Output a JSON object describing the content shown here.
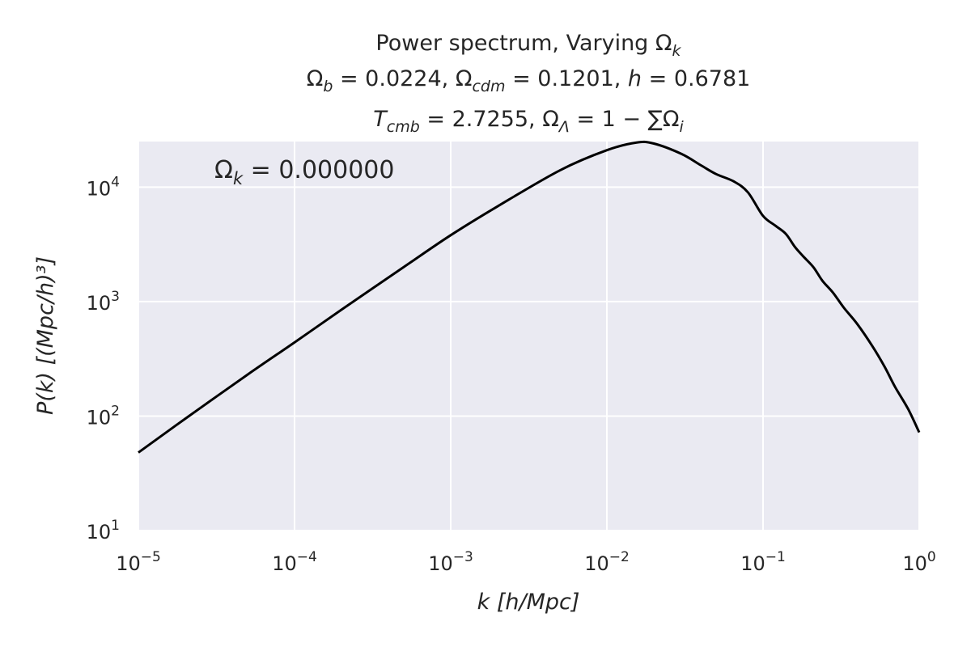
{
  "chart_data": {
    "type": "line",
    "title_lines": [
      [
        "Power spectrum, Varying ",
        {
          "t": "Ω",
          "sub": "k"
        }
      ],
      [
        {
          "t": "Ω",
          "sub": "b"
        },
        " = 0.0224, ",
        {
          "t": "Ω",
          "sub": "cdm"
        },
        " = 0.1201, ",
        {
          "i": "h"
        },
        " = 0.6781"
      ],
      [
        {
          "i": "T",
          "sub": "cmb"
        },
        " = 2.7255, ",
        {
          "t": "Ω",
          "sub": "Λ"
        },
        " = 1 − ∑",
        {
          "t": "Ω",
          "sub": "i"
        }
      ]
    ],
    "xlabel": "k  [h/Mpc]",
    "ylabel": "P(k)  [(Mpc/h)³]",
    "xscale": "log",
    "yscale": "log",
    "xlim": [
      1e-05,
      1
    ],
    "ylim": [
      10,
      25000
    ],
    "x_ticks": [
      {
        "value": 1e-05,
        "base": "10",
        "exp": "−5"
      },
      {
        "value": 0.0001,
        "base": "10",
        "exp": "−4"
      },
      {
        "value": 0.001,
        "base": "10",
        "exp": "−3"
      },
      {
        "value": 0.01,
        "base": "10",
        "exp": "−2"
      },
      {
        "value": 0.1,
        "base": "10",
        "exp": "−1"
      },
      {
        "value": 1,
        "base": "10",
        "exp": "0"
      }
    ],
    "y_ticks": [
      {
        "value": 10,
        "base": "10",
        "exp": "1"
      },
      {
        "value": 100,
        "base": "10",
        "exp": "2"
      },
      {
        "value": 1000,
        "base": "10",
        "exp": "3"
      },
      {
        "value": 10000,
        "base": "10",
        "exp": "4"
      }
    ],
    "grid": true,
    "background": "#eaeaf2",
    "line_color": "#000000",
    "annotation": {
      "prefix": "Ω",
      "sub": "k",
      "text": " = 0.000000"
    },
    "series": [
      {
        "x": [
          1e-05,
          2e-05,
          5e-05,
          0.0001,
          0.0002,
          0.0005,
          0.001,
          0.002,
          0.005,
          0.01,
          0.0155,
          0.02,
          0.03,
          0.04,
          0.05,
          0.065,
          0.08,
          0.1,
          0.12,
          0.14,
          0.16,
          0.18,
          0.21,
          0.24,
          0.28,
          0.33,
          0.4,
          0.5,
          0.6,
          0.7,
          0.85,
          1.0
        ],
        "y": [
          48,
          95,
          230,
          440,
          850,
          2000,
          3800,
          6800,
          14000,
          21000,
          24500,
          24000,
          19500,
          15500,
          13000,
          11200,
          9000,
          5600,
          4600,
          3900,
          3000,
          2500,
          2000,
          1520,
          1200,
          880,
          640,
          410,
          270,
          180,
          115,
          72
        ]
      }
    ]
  }
}
